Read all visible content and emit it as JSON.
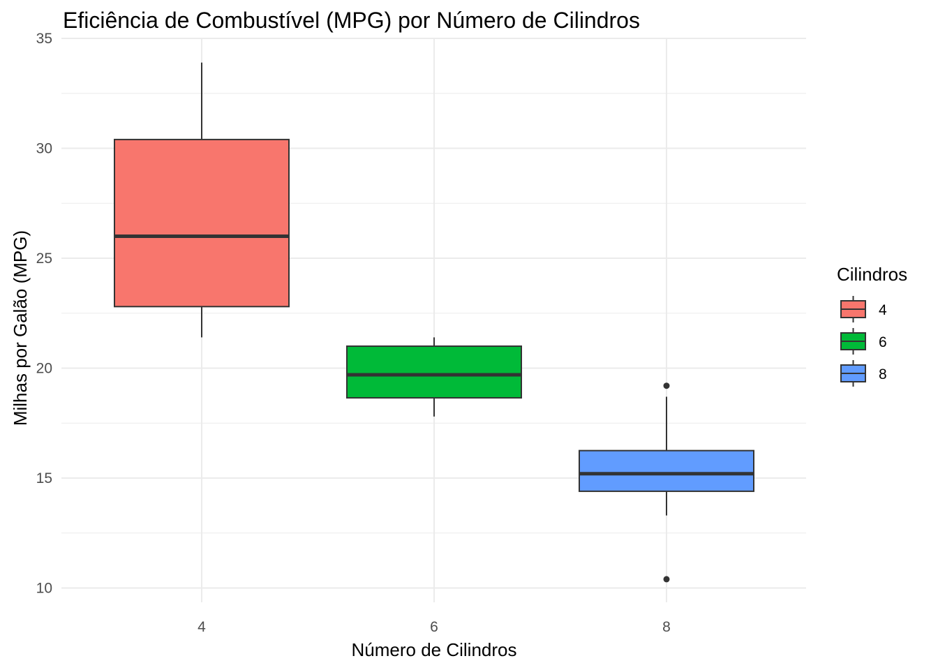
{
  "chart_data": {
    "type": "boxplot",
    "title": "Eficiência de Combustível (MPG) por Número de Cilindros",
    "xlabel": "Número de Cilindros",
    "ylabel": "Milhas por Galão (MPG)",
    "ylim": [
      9.35,
      35.0
    ],
    "y_ticks": [
      10,
      15,
      20,
      25,
      30,
      35
    ],
    "categories": [
      "4",
      "6",
      "8"
    ],
    "groups": [
      {
        "category": "4",
        "min": 21.4,
        "q1": 22.8,
        "median": 26.0,
        "q3": 30.4,
        "max": 33.9,
        "outliers": [],
        "color": "#F8766D"
      },
      {
        "category": "6",
        "min": 17.8,
        "q1": 18.65,
        "median": 19.7,
        "q3": 21.0,
        "max": 21.4,
        "outliers": [],
        "color": "#00BA38"
      },
      {
        "category": "8",
        "min": 13.3,
        "q1": 14.4,
        "median": 15.2,
        "q3": 16.25,
        "max": 18.7,
        "outliers": [
          19.2,
          10.4
        ],
        "color": "#619CFF"
      }
    ],
    "grid": true,
    "legend": {
      "title": "Cilindros",
      "position": "right",
      "items": [
        {
          "label": "4",
          "color": "#F8766D"
        },
        {
          "label": "6",
          "color": "#00BA38"
        },
        {
          "label": "8",
          "color": "#619CFF"
        }
      ]
    }
  }
}
